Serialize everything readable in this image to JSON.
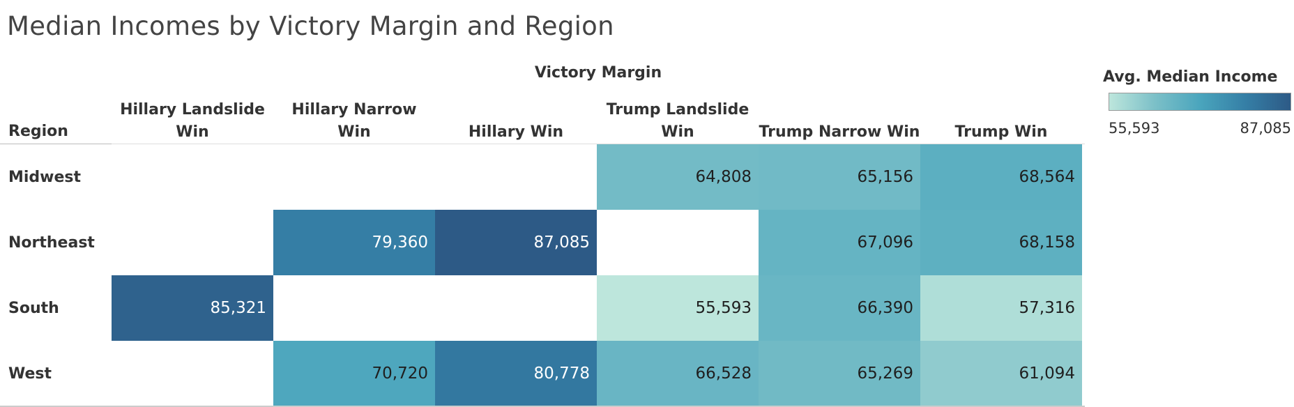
{
  "chart_data": {
    "type": "heatmap",
    "title": "Median Incomes by Victory Margin and Region",
    "column_group_label": "Victory Margin",
    "row_header": "Region",
    "columns": [
      "Hillary Landslide Win",
      "Hillary Narrow Win",
      "Hillary Win",
      "Trump Landslide Win",
      "Trump Narrow Win",
      "Trump Win"
    ],
    "column_label_lines": [
      [
        "Hillary Landslide",
        "Win"
      ],
      [
        "Hillary Narrow Win"
      ],
      [
        "Hillary Win"
      ],
      [
        "Trump Landslide",
        "Win"
      ],
      [
        "Trump Narrow Win"
      ],
      [
        "Trump Win"
      ]
    ],
    "rows": [
      "Midwest",
      "Northeast",
      "South",
      "West"
    ],
    "values": [
      [
        null,
        null,
        null,
        64808,
        65156,
        68564
      ],
      [
        null,
        79360,
        87085,
        null,
        67096,
        68158
      ],
      [
        85321,
        null,
        null,
        55593,
        66390,
        57316
      ],
      [
        null,
        70720,
        80778,
        66528,
        65269,
        61094
      ]
    ],
    "value_labels": [
      [
        "",
        "",
        "",
        "64,808",
        "65,156",
        "68,564"
      ],
      [
        "",
        "79,360",
        "87,085",
        "",
        "67,096",
        "68,158"
      ],
      [
        "85,321",
        "",
        "",
        "55,593",
        "66,390",
        "57,316"
      ],
      [
        "",
        "70,720",
        "80,778",
        "66,528",
        "65,269",
        "61,094"
      ]
    ],
    "legend": {
      "title": "Avg. Median Income",
      "min": 55593,
      "max": 87085,
      "min_label": "55,593",
      "max_label": "87,085",
      "placement": "top-right",
      "colors": [
        "#bde6dc",
        "#7cc0c8",
        "#4aa5bd",
        "#357fa6",
        "#2d5a86"
      ]
    }
  }
}
